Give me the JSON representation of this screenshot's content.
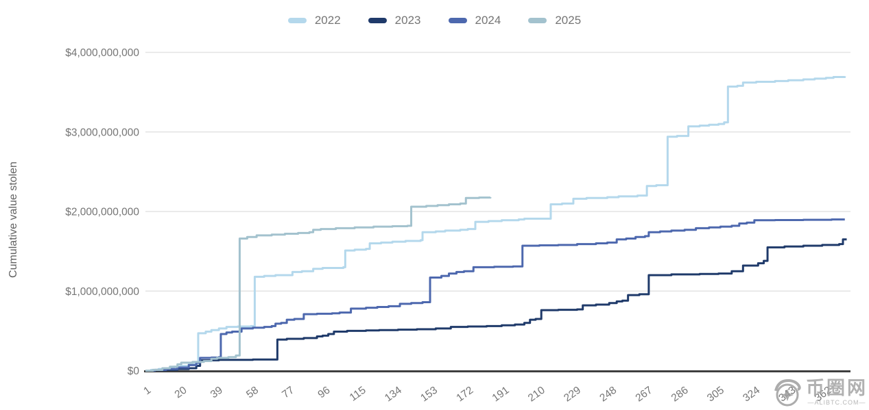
{
  "chart_data": {
    "type": "line",
    "step_interpolation": true,
    "title": "",
    "xlabel": "",
    "ylabel": "Cumulative value stolen",
    "unit": "USD",
    "values_unit": "billions of USD",
    "grid": true,
    "legend_position": "top-center",
    "ylim": [
      0,
      4000000000
    ],
    "xlim": [
      1,
      375
    ],
    "y_ticks": [
      {
        "value": 0,
        "label": "$0"
      },
      {
        "value": 1,
        "label": "$1,000,000,000"
      },
      {
        "value": 2,
        "label": "$2,000,000,000"
      },
      {
        "value": 3,
        "label": "$3,000,000,000"
      },
      {
        "value": 4,
        "label": "$4,000,000,000"
      }
    ],
    "x_ticks": [
      1,
      20,
      39,
      58,
      77,
      96,
      115,
      134,
      153,
      172,
      191,
      210,
      229,
      248,
      267,
      286,
      305,
      324,
      343,
      362
    ],
    "series": [
      {
        "name": "2022",
        "color": "#b4d8ec",
        "points": [
          [
            1,
            0
          ],
          [
            4,
            0.01
          ],
          [
            8,
            0.02
          ],
          [
            12,
            0.03
          ],
          [
            16,
            0.05
          ],
          [
            20,
            0.06
          ],
          [
            24,
            0.08
          ],
          [
            27,
            0.09
          ],
          [
            29,
            0.47
          ],
          [
            33,
            0.49
          ],
          [
            36,
            0.51
          ],
          [
            40,
            0.53
          ],
          [
            44,
            0.55
          ],
          [
            50,
            0.555
          ],
          [
            57,
            0.56
          ],
          [
            59,
            1.18
          ],
          [
            64,
            1.19
          ],
          [
            70,
            1.2
          ],
          [
            79,
            1.24
          ],
          [
            84,
            1.25
          ],
          [
            90,
            1.28
          ],
          [
            95,
            1.29
          ],
          [
            106,
            1.3
          ],
          [
            107,
            1.51
          ],
          [
            112,
            1.52
          ],
          [
            118,
            1.53
          ],
          [
            120,
            1.6
          ],
          [
            126,
            1.61
          ],
          [
            132,
            1.62
          ],
          [
            139,
            1.63
          ],
          [
            147,
            1.64
          ],
          [
            148,
            1.74
          ],
          [
            155,
            1.75
          ],
          [
            160,
            1.76
          ],
          [
            168,
            1.77
          ],
          [
            172,
            1.78
          ],
          [
            176,
            1.87
          ],
          [
            183,
            1.88
          ],
          [
            190,
            1.89
          ],
          [
            199,
            1.9
          ],
          [
            202,
            1.91
          ],
          [
            216,
            2.09
          ],
          [
            222,
            2.1
          ],
          [
            228,
            2.16
          ],
          [
            235,
            2.17
          ],
          [
            246,
            2.18
          ],
          [
            252,
            2.19
          ],
          [
            262,
            2.2
          ],
          [
            267,
            2.32
          ],
          [
            272,
            2.33
          ],
          [
            278,
            2.94
          ],
          [
            283,
            2.95
          ],
          [
            289,
            3.07
          ],
          [
            295,
            3.08
          ],
          [
            300,
            3.09
          ],
          [
            305,
            3.1
          ],
          [
            308,
            3.12
          ],
          [
            310,
            3.57
          ],
          [
            315,
            3.58
          ],
          [
            318,
            3.62
          ],
          [
            325,
            3.63
          ],
          [
            335,
            3.64
          ],
          [
            342,
            3.65
          ],
          [
            350,
            3.66
          ],
          [
            356,
            3.67
          ],
          [
            362,
            3.68
          ],
          [
            366,
            3.69
          ],
          [
            372,
            3.7
          ]
        ]
      },
      {
        "name": "2023",
        "color": "#1f3a6a",
        "points": [
          [
            1,
            0
          ],
          [
            6,
            0.005
          ],
          [
            12,
            0.01
          ],
          [
            18,
            0.02
          ],
          [
            24,
            0.03
          ],
          [
            28,
            0.06
          ],
          [
            30,
            0.13
          ],
          [
            40,
            0.135
          ],
          [
            58,
            0.14
          ],
          [
            66,
            0.14
          ],
          [
            71,
            0.39
          ],
          [
            76,
            0.4
          ],
          [
            85,
            0.41
          ],
          [
            92,
            0.43
          ],
          [
            95,
            0.44
          ],
          [
            98,
            0.46
          ],
          [
            101,
            0.49
          ],
          [
            108,
            0.5
          ],
          [
            118,
            0.505
          ],
          [
            125,
            0.51
          ],
          [
            135,
            0.515
          ],
          [
            145,
            0.52
          ],
          [
            155,
            0.53
          ],
          [
            163,
            0.55
          ],
          [
            172,
            0.555
          ],
          [
            182,
            0.56
          ],
          [
            190,
            0.57
          ],
          [
            197,
            0.58
          ],
          [
            202,
            0.6
          ],
          [
            205,
            0.64
          ],
          [
            208,
            0.65
          ],
          [
            211,
            0.76
          ],
          [
            220,
            0.765
          ],
          [
            230,
            0.77
          ],
          [
            233,
            0.82
          ],
          [
            240,
            0.83
          ],
          [
            247,
            0.85
          ],
          [
            251,
            0.87
          ],
          [
            254,
            0.88
          ],
          [
            257,
            0.95
          ],
          [
            263,
            0.96
          ],
          [
            268,
            1.2
          ],
          [
            280,
            1.21
          ],
          [
            295,
            1.215
          ],
          [
            305,
            1.22
          ],
          [
            312,
            1.25
          ],
          [
            318,
            1.32
          ],
          [
            326,
            1.35
          ],
          [
            329,
            1.38
          ],
          [
            331,
            1.55
          ],
          [
            340,
            1.56
          ],
          [
            350,
            1.57
          ],
          [
            360,
            1.58
          ],
          [
            369,
            1.59
          ],
          [
            371,
            1.65
          ],
          [
            373,
            1.65
          ]
        ]
      },
      {
        "name": "2024",
        "color": "#4d68ae",
        "points": [
          [
            1,
            0
          ],
          [
            6,
            0.01
          ],
          [
            12,
            0.02
          ],
          [
            18,
            0.04
          ],
          [
            24,
            0.07
          ],
          [
            28,
            0.1
          ],
          [
            30,
            0.16
          ],
          [
            36,
            0.165
          ],
          [
            40,
            0.17
          ],
          [
            41,
            0.46
          ],
          [
            44,
            0.48
          ],
          [
            47,
            0.49
          ],
          [
            52,
            0.53
          ],
          [
            58,
            0.54
          ],
          [
            64,
            0.55
          ],
          [
            68,
            0.56
          ],
          [
            70,
            0.59
          ],
          [
            73,
            0.6
          ],
          [
            76,
            0.64
          ],
          [
            80,
            0.65
          ],
          [
            85,
            0.71
          ],
          [
            92,
            0.715
          ],
          [
            100,
            0.72
          ],
          [
            104,
            0.73
          ],
          [
            110,
            0.78
          ],
          [
            118,
            0.79
          ],
          [
            124,
            0.8
          ],
          [
            130,
            0.81
          ],
          [
            136,
            0.84
          ],
          [
            142,
            0.85
          ],
          [
            148,
            0.86
          ],
          [
            152,
            1.17
          ],
          [
            158,
            1.19
          ],
          [
            162,
            1.22
          ],
          [
            166,
            1.24
          ],
          [
            170,
            1.25
          ],
          [
            175,
            1.3
          ],
          [
            186,
            1.305
          ],
          [
            196,
            1.31
          ],
          [
            201,
            1.57
          ],
          [
            210,
            1.575
          ],
          [
            220,
            1.58
          ],
          [
            230,
            1.59
          ],
          [
            240,
            1.6
          ],
          [
            246,
            1.61
          ],
          [
            251,
            1.65
          ],
          [
            256,
            1.66
          ],
          [
            261,
            1.68
          ],
          [
            266,
            1.69
          ],
          [
            268,
            1.74
          ],
          [
            274,
            1.75
          ],
          [
            280,
            1.76
          ],
          [
            287,
            1.77
          ],
          [
            293,
            1.79
          ],
          [
            300,
            1.8
          ],
          [
            306,
            1.81
          ],
          [
            312,
            1.82
          ],
          [
            316,
            1.85
          ],
          [
            320,
            1.86
          ],
          [
            324,
            1.89
          ],
          [
            335,
            1.893
          ],
          [
            350,
            1.896
          ],
          [
            365,
            1.9
          ],
          [
            372,
            1.9
          ]
        ]
      },
      {
        "name": "2025",
        "color": "#a3c2ce",
        "points": [
          [
            1,
            0
          ],
          [
            5,
            0.01
          ],
          [
            10,
            0.03
          ],
          [
            14,
            0.05
          ],
          [
            18,
            0.08
          ],
          [
            20,
            0.1
          ],
          [
            26,
            0.11
          ],
          [
            32,
            0.12
          ],
          [
            36,
            0.15
          ],
          [
            39,
            0.16
          ],
          [
            45,
            0.17
          ],
          [
            49,
            0.19
          ],
          [
            51,
            1.66
          ],
          [
            55,
            1.68
          ],
          [
            60,
            1.7
          ],
          [
            68,
            1.71
          ],
          [
            75,
            1.72
          ],
          [
            82,
            1.73
          ],
          [
            88,
            1.74
          ],
          [
            90,
            1.77
          ],
          [
            94,
            1.78
          ],
          [
            102,
            1.79
          ],
          [
            112,
            1.8
          ],
          [
            122,
            1.81
          ],
          [
            132,
            1.815
          ],
          [
            140,
            1.82
          ],
          [
            142,
            2.06
          ],
          [
            150,
            2.07
          ],
          [
            156,
            2.08
          ],
          [
            162,
            2.09
          ],
          [
            168,
            2.1
          ],
          [
            171,
            2.17
          ],
          [
            178,
            2.175
          ],
          [
            184,
            2.18
          ]
        ]
      }
    ]
  },
  "colors": {
    "grid": "#e3e3e3",
    "axis": "#3f3f3f",
    "tick_text": "#757575",
    "axis_title_text": "#616161",
    "watermark_gray": "#a4a4a4"
  },
  "watermark": {
    "cn": "币圈网",
    "url_label": "—ALIBTC.COM—"
  }
}
